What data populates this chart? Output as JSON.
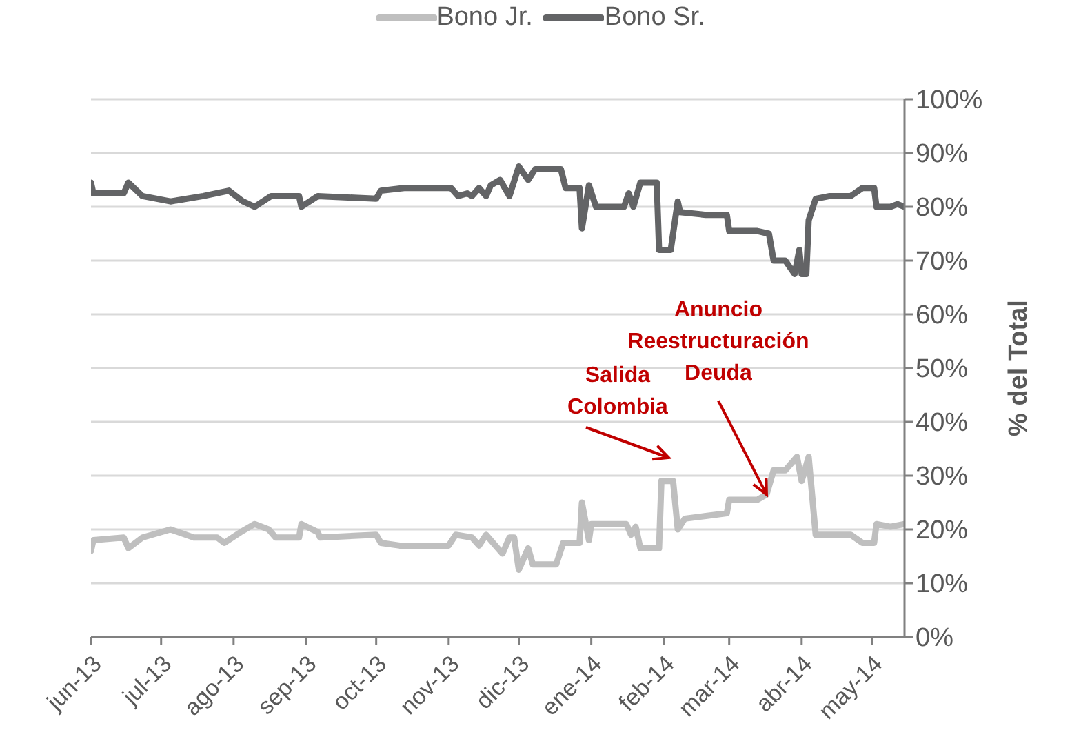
{
  "chart_data": {
    "type": "line",
    "ylabel": "% del Total",
    "legend": "top",
    "grid": "y",
    "marker": "none",
    "line_style": "solid",
    "xlim": [
      "2013-06-01",
      "2014-05-15"
    ],
    "xticks": [
      {
        "value": "2013-06-01",
        "label": "jun-13"
      },
      {
        "value": "2013-07-01",
        "label": "jul-13"
      },
      {
        "value": "2013-08-01",
        "label": "ago-13"
      },
      {
        "value": "2013-09-01",
        "label": "sep-13"
      },
      {
        "value": "2013-10-01",
        "label": "oct-13"
      },
      {
        "value": "2013-11-01",
        "label": "nov-13"
      },
      {
        "value": "2013-12-01",
        "label": "dic-13"
      },
      {
        "value": "2014-01-01",
        "label": "ene-14"
      },
      {
        "value": "2014-02-01",
        "label": "feb-14"
      },
      {
        "value": "2014-03-01",
        "label": "mar-14"
      },
      {
        "value": "2014-04-01",
        "label": "abr-14"
      },
      {
        "value": "2014-05-01",
        "label": "may-14"
      }
    ],
    "ylim": [
      0,
      100
    ],
    "yticks": [
      {
        "value": 0,
        "label": "0%"
      },
      {
        "value": 10,
        "label": "10%"
      },
      {
        "value": 20,
        "label": "20%"
      },
      {
        "value": 30,
        "label": "30%"
      },
      {
        "value": 40,
        "label": "40%"
      },
      {
        "value": 50,
        "label": "50%"
      },
      {
        "value": 60,
        "label": "60%"
      },
      {
        "value": 70,
        "label": "70%"
      },
      {
        "value": 80,
        "label": "80%"
      },
      {
        "value": 90,
        "label": "90%"
      },
      {
        "value": 100,
        "label": "100%"
      }
    ],
    "series": [
      {
        "name": "Bono Jr.",
        "color": "#bfbfbf",
        "x": [
          "2013-06-01",
          "2013-06-02",
          "2013-06-15",
          "2013-06-17",
          "2013-06-23",
          "2013-07-05",
          "2013-07-15",
          "2013-07-25",
          "2013-07-28",
          "2013-08-04",
          "2013-08-10",
          "2013-08-16",
          "2013-08-19",
          "2013-08-29",
          "2013-08-30",
          "2013-09-06",
          "2013-09-07",
          "2013-10-01",
          "2013-10-03",
          "2013-10-11",
          "2013-11-01",
          "2013-11-04",
          "2013-11-11",
          "2013-11-14",
          "2013-11-17",
          "2013-11-24",
          "2013-11-27",
          "2013-11-29",
          "2013-12-01",
          "2013-12-05",
          "2013-12-07",
          "2013-12-17",
          "2013-12-20",
          "2013-12-27",
          "2013-12-28",
          "2013-12-31",
          "2014-01-01",
          "2014-01-16",
          "2014-01-18",
          "2014-01-20",
          "2014-01-22",
          "2014-01-30",
          "2014-01-31",
          "2014-02-05",
          "2014-02-07",
          "2014-02-10",
          "2014-02-19",
          "2014-02-28",
          "2014-03-01",
          "2014-03-13",
          "2014-03-17",
          "2014-03-20",
          "2014-03-25",
          "2014-03-30",
          "2014-04-01",
          "2014-04-04",
          "2014-04-07",
          "2014-04-13",
          "2014-04-22",
          "2014-04-27",
          "2014-05-02",
          "2014-05-03",
          "2014-05-09",
          "2014-05-15"
        ],
        "values": [
          16,
          18,
          18.5,
          16.5,
          18.5,
          20,
          18.5,
          18.5,
          17.5,
          19.5,
          21,
          20,
          18.5,
          18.5,
          21,
          19.5,
          18.5,
          19,
          17.5,
          17,
          17,
          19,
          18.5,
          17,
          19,
          15.5,
          18.5,
          18.5,
          12.5,
          16.5,
          13.5,
          13.5,
          17.5,
          17.5,
          25,
          18,
          21,
          21,
          19,
          20.5,
          16.5,
          16.5,
          29,
          29,
          20,
          22,
          22.5,
          23,
          25.5,
          25.5,
          26.5,
          31,
          31,
          33.5,
          29,
          33.5,
          19,
          19,
          19,
          17.5,
          17.5,
          21,
          20.5,
          21
        ]
      },
      {
        "name": "Bono Sr.",
        "color": "#636466",
        "x": [
          "2013-06-01",
          "2013-06-02",
          "2013-06-15",
          "2013-06-17",
          "2013-06-23",
          "2013-07-05",
          "2013-07-19",
          "2013-07-30",
          "2013-08-05",
          "2013-08-10",
          "2013-08-17",
          "2013-08-29",
          "2013-08-30",
          "2013-09-06",
          "2013-10-01",
          "2013-10-03",
          "2013-10-13",
          "2013-11-02",
          "2013-11-05",
          "2013-11-09",
          "2013-11-11",
          "2013-11-14",
          "2013-11-17",
          "2013-11-19",
          "2013-11-23",
          "2013-11-27",
          "2013-12-01",
          "2013-12-05",
          "2013-12-08",
          "2013-12-19",
          "2013-12-21",
          "2013-12-27",
          "2013-12-28",
          "2013-12-31",
          "2014-01-03",
          "2014-01-15",
          "2014-01-17",
          "2014-01-19",
          "2014-01-22",
          "2014-01-29",
          "2014-01-30",
          "2014-02-04",
          "2014-02-07",
          "2014-02-08",
          "2014-02-19",
          "2014-02-28",
          "2014-03-01",
          "2014-03-13",
          "2014-03-18",
          "2014-03-20",
          "2014-03-25",
          "2014-03-29",
          "2014-03-31",
          "2014-04-01",
          "2014-04-03",
          "2014-04-04",
          "2014-04-07",
          "2014-04-13",
          "2014-04-22",
          "2014-04-27",
          "2014-05-02",
          "2014-05-03",
          "2014-05-09",
          "2014-05-12",
          "2014-05-15"
        ],
        "values": [
          84.5,
          82.5,
          82.5,
          84.5,
          82,
          81,
          82,
          83,
          81,
          80,
          82,
          82,
          80,
          82,
          81.5,
          83,
          83.5,
          83.5,
          82,
          82.5,
          82,
          83.5,
          82,
          84,
          85,
          82,
          87.5,
          85,
          87,
          87,
          83.5,
          83.5,
          76,
          84,
          80,
          80,
          82.5,
          80,
          84.5,
          84.5,
          72,
          72,
          81,
          79,
          78.5,
          78.5,
          75.5,
          75.5,
          75,
          70,
          70,
          67.5,
          72,
          67.5,
          67.5,
          77.5,
          81.5,
          82,
          82,
          83.5,
          83.5,
          80,
          80,
          80.5,
          80
        ]
      }
    ],
    "annotations": [
      "Salida\nColombia",
      {
        "text": "Anuncio\nReestructuración\nDeuda",
        "x": "2014-03-17",
        "y": 26.5
      }
    ]
  }
}
